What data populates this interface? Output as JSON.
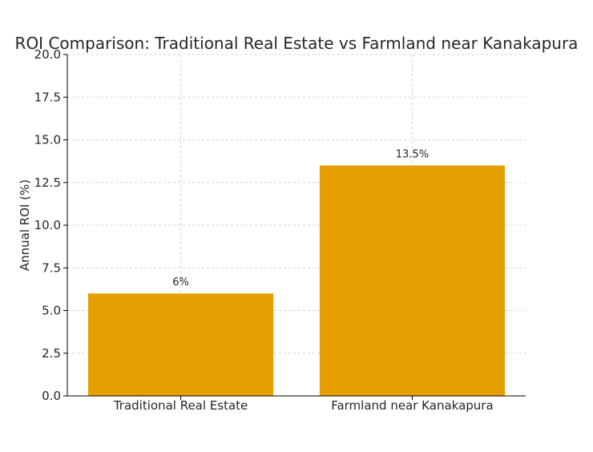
{
  "chart_data": {
    "type": "bar",
    "title": "ROI Comparison: Traditional Real Estate vs Farmland near Kanakapura",
    "xlabel": "",
    "ylabel": "Annual ROI (%)",
    "categories": [
      "Traditional Real Estate",
      "Farmland near Kanakapura"
    ],
    "values": [
      6,
      13.5
    ],
    "data_labels": [
      "6%",
      "13.5%"
    ],
    "ylim": [
      0,
      20
    ],
    "yticks": [
      "0.0",
      "2.5",
      "5.0",
      "7.5",
      "10.0",
      "12.5",
      "15.0",
      "17.5",
      "20.0"
    ],
    "grid": true,
    "bar_color": "#e69f00"
  }
}
